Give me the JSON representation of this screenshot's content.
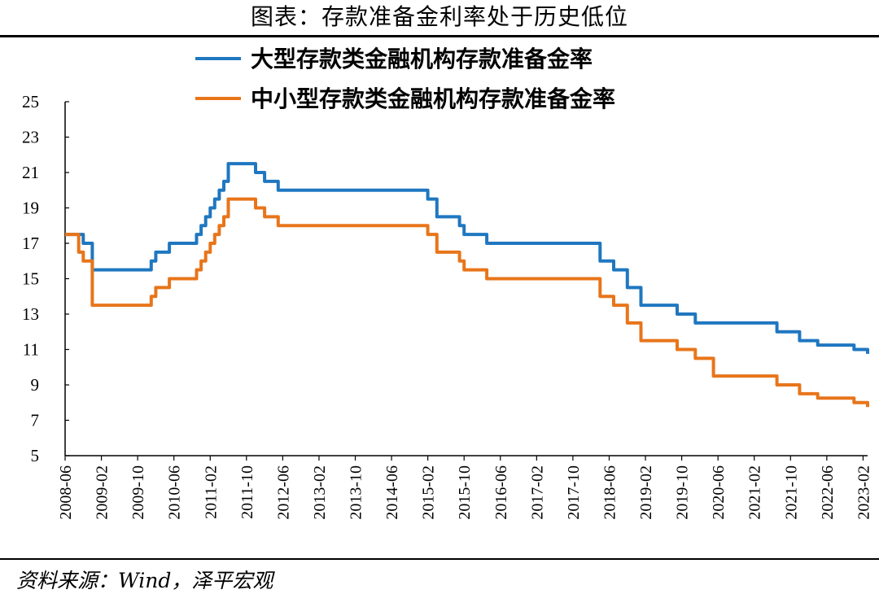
{
  "header": {
    "title": "图表：存款准备金利率处于历史低位"
  },
  "footer": {
    "source": "资料来源：Wind，泽平宏观"
  },
  "chart_data": {
    "type": "line",
    "title": "图表：存款准备金利率处于历史低位",
    "xlabel": "",
    "ylabel": "",
    "ylim": [
      5,
      25
    ],
    "yticks": [
      5,
      7,
      9,
      11,
      13,
      15,
      17,
      19,
      21,
      23,
      25
    ],
    "xrange": [
      "2008-06",
      "2023-03"
    ],
    "xticks": [
      "2008-06",
      "2009-02",
      "2009-10",
      "2010-06",
      "2011-02",
      "2011-10",
      "2012-06",
      "2013-02",
      "2013-10",
      "2014-06",
      "2015-02",
      "2015-10",
      "2016-06",
      "2017-02",
      "2017-10",
      "2018-06",
      "2019-02",
      "2019-10",
      "2020-06",
      "2021-02",
      "2021-10",
      "2022-06",
      "2023-02"
    ],
    "grid": false,
    "legend_position": "top",
    "series": [
      {
        "name": "大型存款类金融机构存款准备金率",
        "color": "#1F77C0",
        "step": "post",
        "points": [
          [
            "2008-06",
            17.5
          ],
          [
            "2008-09",
            17.5
          ],
          [
            "2008-10",
            17.0
          ],
          [
            "2008-12",
            15.5
          ],
          [
            "2010-01",
            16.0
          ],
          [
            "2010-02",
            16.5
          ],
          [
            "2010-05",
            17.0
          ],
          [
            "2010-11",
            17.5
          ],
          [
            "2010-12",
            18.0
          ],
          [
            "2011-01",
            18.5
          ],
          [
            "2011-02",
            19.0
          ],
          [
            "2011-03",
            19.5
          ],
          [
            "2011-04",
            20.0
          ],
          [
            "2011-05",
            20.5
          ],
          [
            "2011-06",
            21.5
          ],
          [
            "2011-12",
            21.0
          ],
          [
            "2012-02",
            20.5
          ],
          [
            "2012-05",
            20.0
          ],
          [
            "2015-02",
            19.5
          ],
          [
            "2015-04",
            18.5
          ],
          [
            "2015-09",
            18.0
          ],
          [
            "2015-10",
            17.5
          ],
          [
            "2016-03",
            17.0
          ],
          [
            "2018-04",
            16.0
          ],
          [
            "2018-07",
            15.5
          ],
          [
            "2018-10",
            14.5
          ],
          [
            "2019-01",
            13.5
          ],
          [
            "2019-09",
            13.0
          ],
          [
            "2020-01",
            12.5
          ],
          [
            "2021-07",
            12.0
          ],
          [
            "2021-12",
            11.5
          ],
          [
            "2022-04",
            11.25
          ],
          [
            "2022-12",
            11.0
          ],
          [
            "2023-03",
            10.75
          ]
        ]
      },
      {
        "name": "中小型存款类金融机构存款准备金率",
        "color": "#E8751A",
        "step": "post",
        "points": [
          [
            "2008-06",
            17.5
          ],
          [
            "2008-09",
            16.5
          ],
          [
            "2008-10",
            16.0
          ],
          [
            "2008-12",
            13.5
          ],
          [
            "2010-01",
            14.0
          ],
          [
            "2010-02",
            14.5
          ],
          [
            "2010-05",
            15.0
          ],
          [
            "2010-11",
            15.5
          ],
          [
            "2010-12",
            16.0
          ],
          [
            "2011-01",
            16.5
          ],
          [
            "2011-02",
            17.0
          ],
          [
            "2011-03",
            17.5
          ],
          [
            "2011-04",
            18.0
          ],
          [
            "2011-05",
            18.5
          ],
          [
            "2011-06",
            19.5
          ],
          [
            "2011-12",
            19.0
          ],
          [
            "2012-02",
            18.5
          ],
          [
            "2012-05",
            18.0
          ],
          [
            "2015-02",
            17.5
          ],
          [
            "2015-04",
            16.5
          ],
          [
            "2015-09",
            16.0
          ],
          [
            "2015-10",
            15.5
          ],
          [
            "2016-03",
            15.0
          ],
          [
            "2018-04",
            14.0
          ],
          [
            "2018-07",
            13.5
          ],
          [
            "2018-10",
            12.5
          ],
          [
            "2019-01",
            11.5
          ],
          [
            "2019-09",
            11.0
          ],
          [
            "2020-01",
            10.5
          ],
          [
            "2020-05",
            9.5
          ],
          [
            "2021-07",
            9.0
          ],
          [
            "2021-12",
            8.5
          ],
          [
            "2022-04",
            8.25
          ],
          [
            "2022-12",
            8.0
          ],
          [
            "2023-03",
            7.75
          ]
        ]
      }
    ]
  }
}
